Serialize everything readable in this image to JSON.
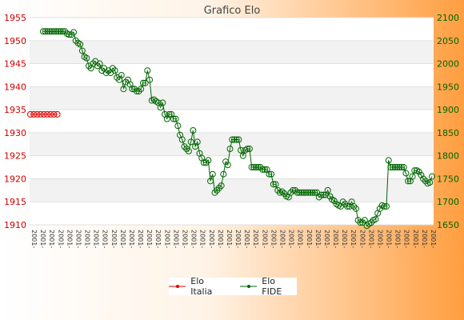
{
  "chart_data": {
    "type": "line",
    "title": "Grafico Elo",
    "y_left": {
      "min": 1910,
      "max": 1955,
      "ticks": [
        1910,
        1915,
        1920,
        1925,
        1930,
        1935,
        1940,
        1945,
        1950,
        1955
      ]
    },
    "y_right": {
      "min": 1650,
      "max": 2100,
      "ticks": [
        1650,
        1700,
        1750,
        1800,
        1850,
        1900,
        1950,
        2000,
        2050,
        2100
      ]
    },
    "x_tick_label": "2001-",
    "x_tick_count": 46,
    "legend_position": "bottom",
    "series": [
      {
        "name": "Elo Italia",
        "axis": "left",
        "color": "#dd0000",
        "values": [
          1934,
          1934,
          1934,
          1934,
          1934,
          1934,
          1934,
          1934,
          1934
        ]
      },
      {
        "name": "Elo FIDE",
        "axis": "right",
        "color": "#006600",
        "values": [
          2070,
          2070,
          2070,
          2070,
          2070,
          2070,
          2070,
          2070,
          2070,
          2070,
          2070,
          2065,
          2063,
          2063,
          2068,
          2050,
          2045,
          2042,
          2028,
          2015,
          2012,
          1995,
          1990,
          2000,
          2005,
          1995,
          2000,
          1985,
          1990,
          1980,
          1985,
          1980,
          1990,
          1985,
          1970,
          1965,
          1975,
          1945,
          1960,
          1965,
          1955,
          1945,
          1945,
          1940,
          1940,
          1945,
          1958,
          1958,
          1985,
          1965,
          1920,
          1922,
          1918,
          1915,
          1905,
          1915,
          1890,
          1880,
          1890,
          1890,
          1880,
          1880,
          1865,
          1845,
          1835,
          1820,
          1815,
          1810,
          1830,
          1855,
          1820,
          1830,
          1805,
          1795,
          1785,
          1785,
          1790,
          1745,
          1760,
          1720,
          1725,
          1730,
          1735,
          1760,
          1787,
          1780,
          1815,
          1835,
          1835,
          1835,
          1835,
          1812,
          1800,
          1812,
          1815,
          1815,
          1775,
          1775,
          1775,
          1775,
          1775,
          1770,
          1770,
          1770,
          1760,
          1760,
          1738,
          1738,
          1725,
          1720,
          1722,
          1718,
          1712,
          1710,
          1720,
          1725,
          1725,
          1720,
          1720,
          1720,
          1720,
          1720,
          1720,
          1720,
          1720,
          1720,
          1720,
          1710,
          1715,
          1715,
          1715,
          1725,
          1712,
          1705,
          1702,
          1695,
          1692,
          1690,
          1700,
          1695,
          1690,
          1690,
          1700,
          1690,
          1685,
          1660,
          1655,
          1655,
          1660,
          1648,
          1652,
          1655,
          1660,
          1662,
          1675,
          1685,
          1692,
          1690,
          1690,
          1790,
          1775,
          1775,
          1775,
          1775,
          1775,
          1775,
          1775,
          1762,
          1745,
          1745,
          1755,
          1768,
          1768,
          1765,
          1758,
          1750,
          1745,
          1740,
          1742,
          1755
        ]
      }
    ]
  }
}
